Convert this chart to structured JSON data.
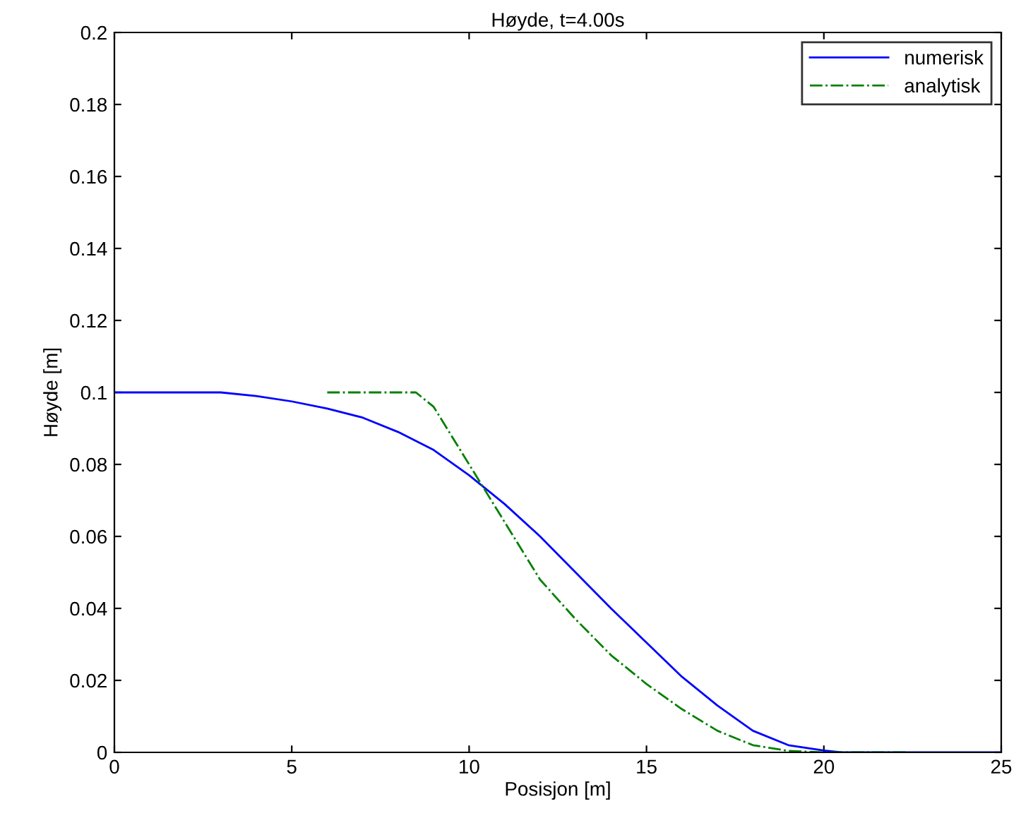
{
  "chart_data": {
    "type": "line",
    "title": "Høyde, t=4.00s",
    "xlabel": "Posisjon [m]",
    "ylabel": "Høyde [m]",
    "xlim": [
      0,
      25
    ],
    "xticks": [
      0,
      5,
      10,
      15,
      20,
      25
    ],
    "ylim": [
      0,
      0.2
    ],
    "yticks": [
      0,
      0.02,
      0.04,
      0.06,
      0.08,
      0.1,
      0.12,
      0.14,
      0.16,
      0.18,
      0.2
    ],
    "grid": false,
    "legend": "top right",
    "series": [
      {
        "name": "numerisk",
        "color": "#0000ff",
        "line_style": "solid",
        "x": [
          0,
          3,
          4,
          5,
          6,
          7,
          8,
          9,
          10,
          11,
          12,
          13,
          14,
          15,
          16,
          17,
          18,
          19,
          20,
          20.5,
          25
        ],
        "values": [
          0.1,
          0.1,
          0.099,
          0.0975,
          0.0955,
          0.093,
          0.089,
          0.084,
          0.077,
          0.069,
          0.06,
          0.05,
          0.04,
          0.0305,
          0.021,
          0.013,
          0.006,
          0.002,
          0.0005,
          0,
          0
        ]
      },
      {
        "name": "analytisk",
        "color": "#008000",
        "line_style": "dashdot",
        "x": [
          6,
          8.5,
          9,
          10,
          11,
          12,
          13,
          14,
          15,
          16,
          17,
          18,
          19,
          20,
          22.3
        ],
        "values": [
          0.1,
          0.1,
          0.096,
          0.08,
          0.064,
          0.048,
          0.037,
          0.027,
          0.019,
          0.012,
          0.006,
          0.002,
          0.0004,
          0,
          0
        ]
      }
    ]
  }
}
